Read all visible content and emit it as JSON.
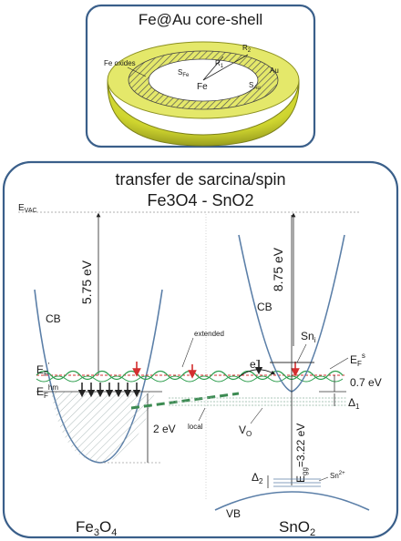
{
  "top_panel": {
    "title": "Fe@Au core-shell",
    "label_fe_oxides": "Fe oxides",
    "label_fe": "Fe",
    "label_au": "Au",
    "label_sfe": "S",
    "label_sfe_sub": "Fe",
    "label_r1": "R",
    "label_r1_sub": "1",
    "label_r2": "R",
    "label_r2_sub": "2",
    "label_sau": "S",
    "label_sau_sub": "Au",
    "colors": {
      "shell": "#d7dc3a",
      "shell_dark": "#9ea225",
      "oxide_hatch": "#555555"
    }
  },
  "main_panel": {
    "title_line1": "transfer de sarcina/spin",
    "title_line2": "Fe3O4 - SnO2",
    "evac": "E",
    "evac_sub": "VAC",
    "left": {
      "gap_label": "5.75 eV",
      "cb_label": "CB",
      "ef_prime_label": "E",
      "ef_prime_sub": "F",
      "ef_prime_sup": "'",
      "ef_hm_label": "E",
      "ef_hm_sub": "F",
      "ef_hm_sup": "hm",
      "gap2_label": "2 eV",
      "material_main": "Fe",
      "material_sub1": "3",
      "material_mid": "O",
      "material_sub2": "4"
    },
    "center": {
      "extended_label": "extended",
      "electron_label": "e",
      "electron_sup": "-",
      "local_label": "local"
    },
    "right": {
      "gap_label": "8.75 eV",
      "cb_label": "CB",
      "sni_label": "Sn",
      "sni_sub": "i",
      "efs_label": "E",
      "efs_sub": "F",
      "efs_sup": "s",
      "gap07_label": "0.7 eV",
      "delta1_label": "Δ",
      "delta1_sub": "1",
      "vo_label": "V",
      "vo_sub": "O",
      "eg_label": "E",
      "eg_sub": "gg",
      "eg_value": "=3.22 eV",
      "delta2_label": "Δ",
      "delta2_sub": "2",
      "sn2_label": "Sn",
      "sn2_sup": "2+",
      "vb_label": "VB",
      "material_main": "SnO",
      "material_sub": "2"
    },
    "colors": {
      "red": "#d32f2f",
      "green": "#2e9e4e",
      "dash_green": "#3c8b52",
      "border": "#3a5f8a"
    }
  }
}
